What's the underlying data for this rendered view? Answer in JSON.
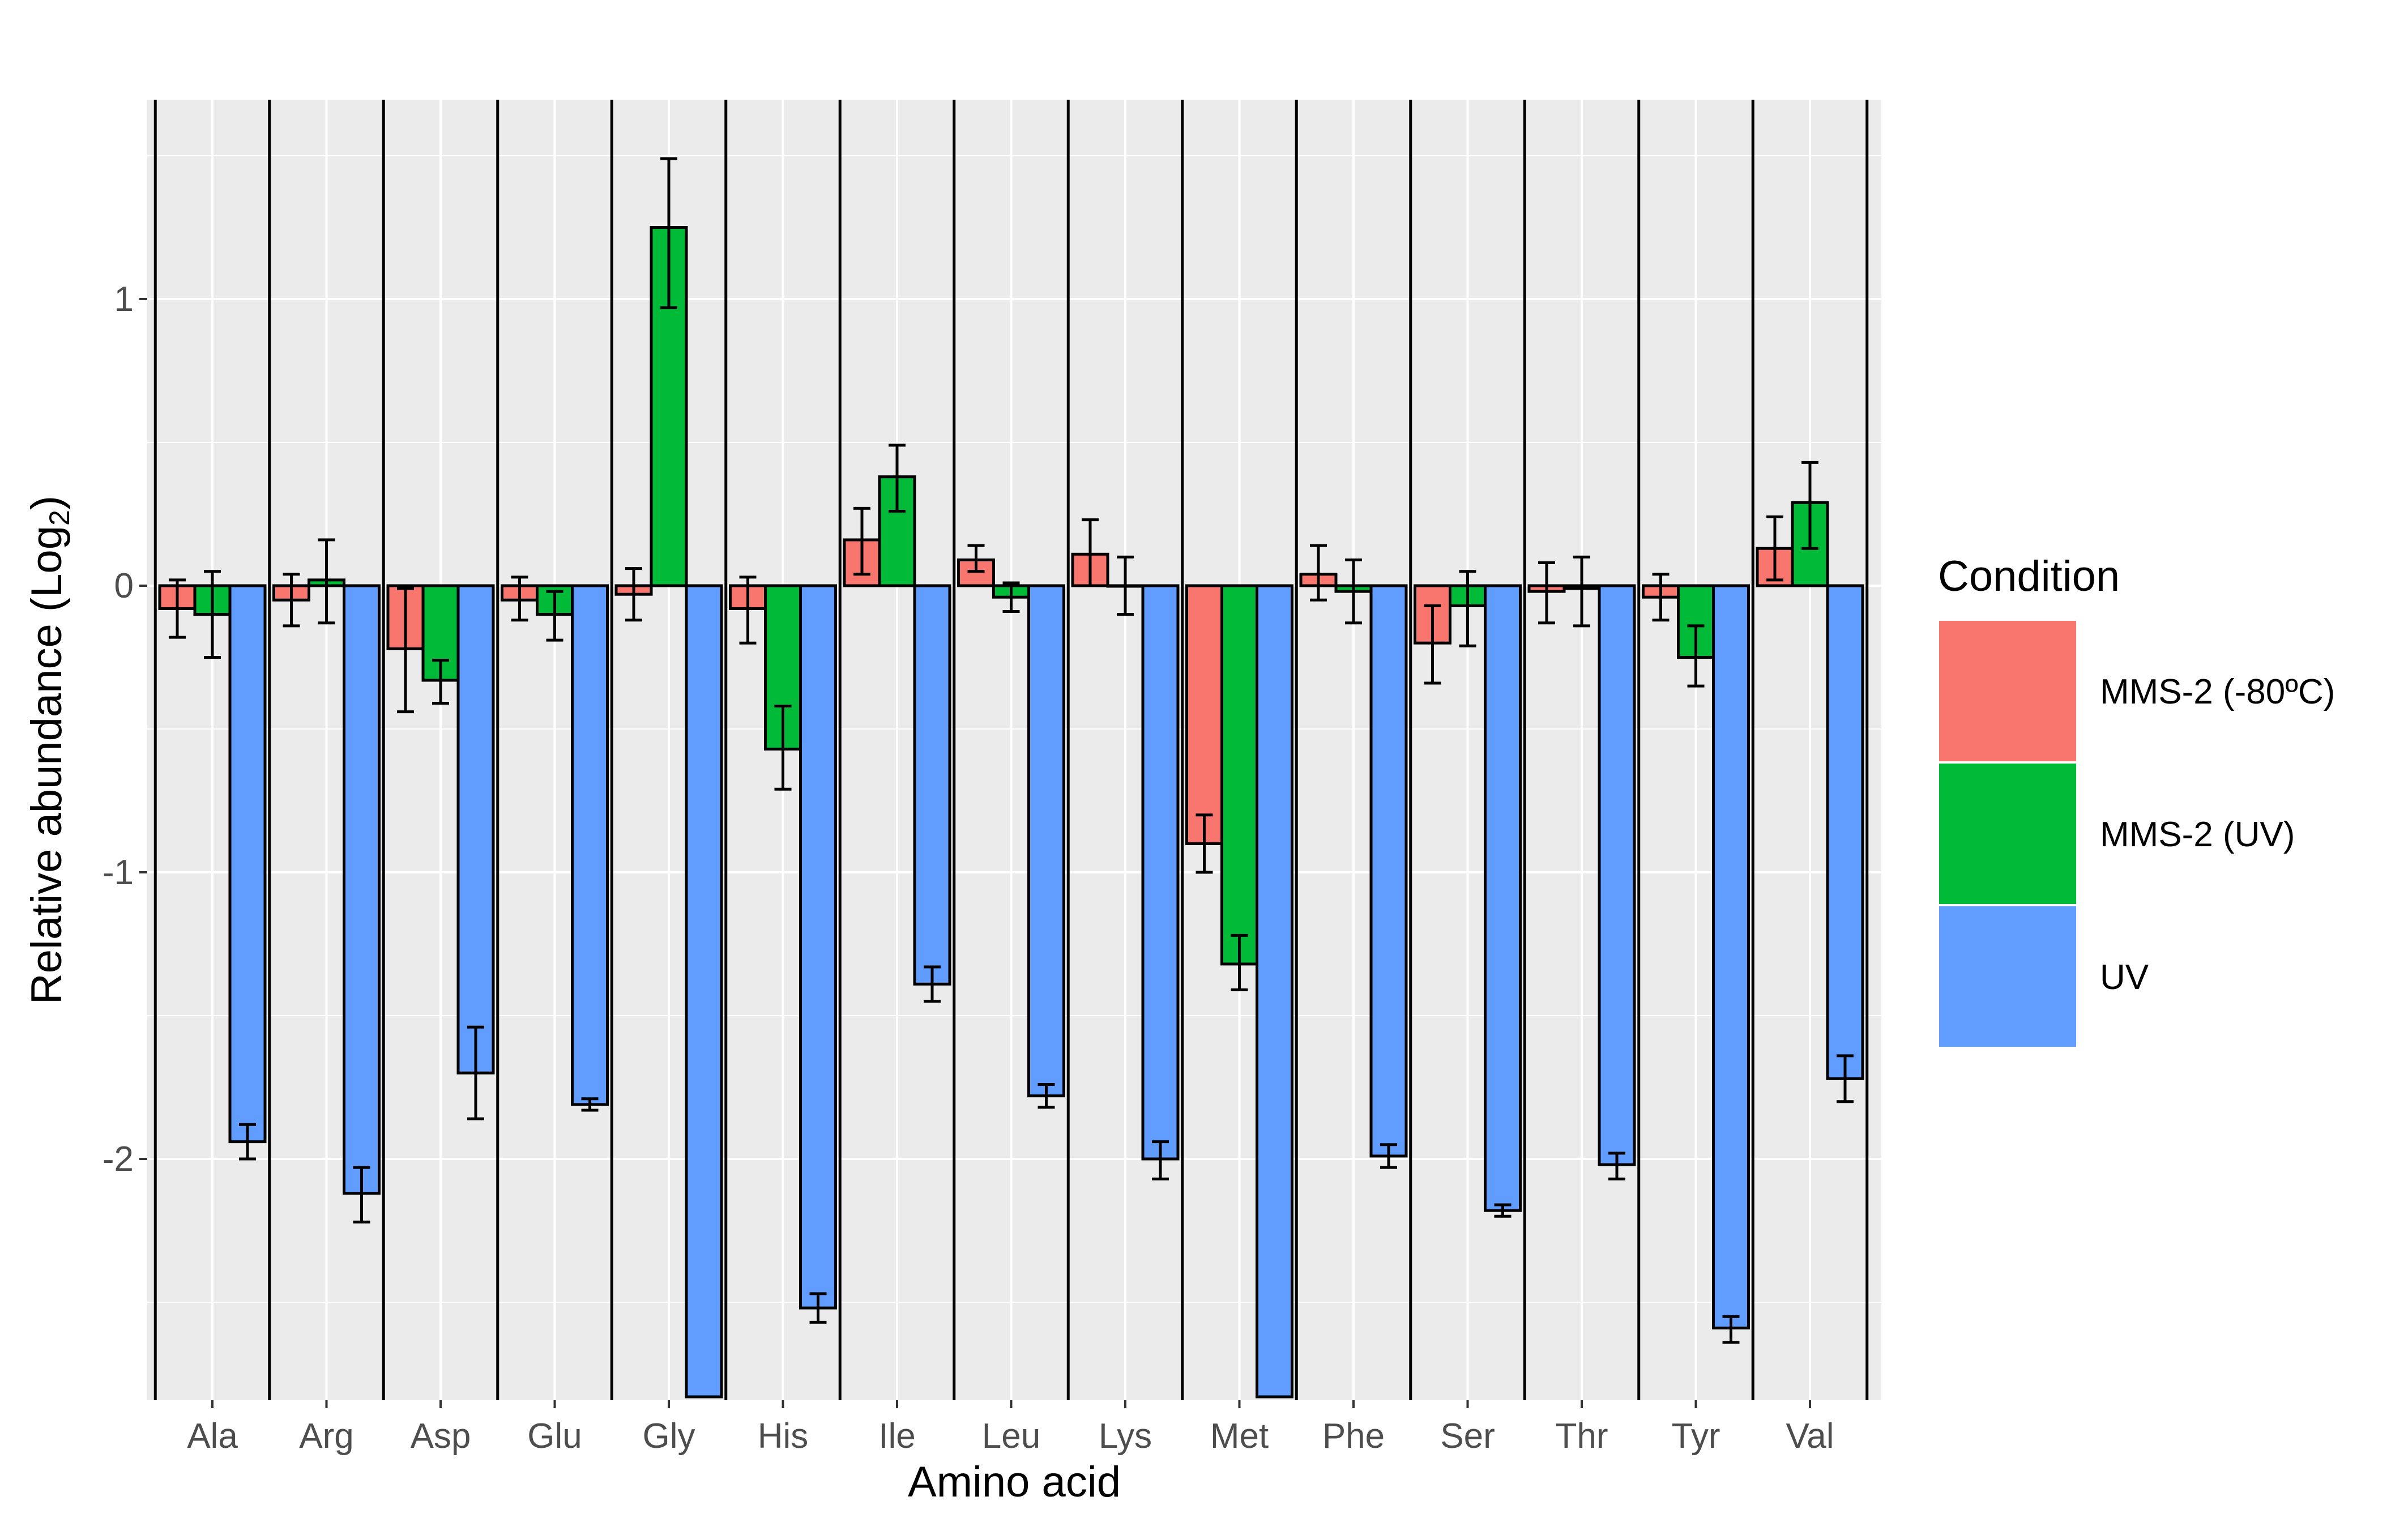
{
  "chart_data": {
    "type": "bar",
    "title": "",
    "xlabel": "Amino acid",
    "ylabel": "Relative abundance (Log",
    "ylabel_subscript": "2",
    "ylabel_suffix": ")",
    "ylim": [
      -2.83,
      1.7
    ],
    "yticks": [
      1,
      0,
      -1,
      -2
    ],
    "ytick_labels": [
      "1",
      "0",
      "-1",
      "-2"
    ],
    "grid": true,
    "legend": {
      "title": "Condition",
      "position": "right"
    },
    "categories": [
      "Ala",
      "Arg",
      "Asp",
      "Glu",
      "Gly",
      "His",
      "Ile",
      "Leu",
      "Lys",
      "Met",
      "Phe",
      "Ser",
      "Thr",
      "Tyr",
      "Val"
    ],
    "series": [
      {
        "name": "MMS-2 (-80ºC)",
        "color": "#F8766D",
        "values": [
          -0.08,
          -0.05,
          -0.22,
          -0.05,
          -0.03,
          -0.08,
          0.16,
          0.09,
          0.11,
          -0.9,
          0.04,
          -0.2,
          -0.02,
          -0.04,
          0.13
        ],
        "err_low": [
          -0.18,
          -0.14,
          -0.44,
          -0.12,
          -0.12,
          -0.2,
          0.04,
          0.05,
          0.0,
          -1.0,
          -0.05,
          -0.34,
          -0.13,
          -0.12,
          0.02
        ],
        "err_high": [
          0.02,
          0.04,
          -0.01,
          0.03,
          0.06,
          0.03,
          0.27,
          0.14,
          0.23,
          -0.8,
          0.14,
          -0.07,
          0.08,
          0.04,
          0.24
        ]
      },
      {
        "name": "MMS-2 (UV)",
        "color": "#00BA38",
        "values": [
          -0.1,
          0.02,
          -0.33,
          -0.1,
          1.25,
          -0.57,
          0.38,
          -0.04,
          0.0,
          -1.32,
          -0.02,
          -0.07,
          -0.01,
          -0.25,
          0.29
        ],
        "err_low": [
          -0.25,
          -0.13,
          -0.41,
          -0.19,
          0.97,
          -0.71,
          0.26,
          -0.09,
          -0.1,
          -1.41,
          -0.13,
          -0.21,
          -0.14,
          -0.35,
          0.13
        ],
        "err_high": [
          0.05,
          0.16,
          -0.26,
          -0.02,
          1.49,
          -0.42,
          0.49,
          0.01,
          0.1,
          -1.22,
          0.09,
          0.05,
          0.1,
          -0.14,
          0.43
        ]
      },
      {
        "name": "UV",
        "color": "#619CFF",
        "values": [
          -1.94,
          -2.12,
          -1.7,
          -1.81,
          -2.83,
          -2.52,
          -1.39,
          -1.78,
          -2.0,
          -2.83,
          -1.99,
          -2.18,
          -2.02,
          -2.59,
          -1.72
        ],
        "err_low": [
          -2.0,
          -2.22,
          -1.86,
          -1.83,
          null,
          -2.57,
          -1.45,
          -1.82,
          -2.07,
          null,
          -2.03,
          -2.2,
          -2.07,
          -2.64,
          -1.8
        ],
        "err_high": [
          -1.88,
          -2.03,
          -1.54,
          -1.79,
          null,
          -2.47,
          -1.33,
          -1.74,
          -1.94,
          null,
          -1.95,
          -2.16,
          -1.98,
          -2.55,
          -1.64
        ]
      }
    ]
  }
}
